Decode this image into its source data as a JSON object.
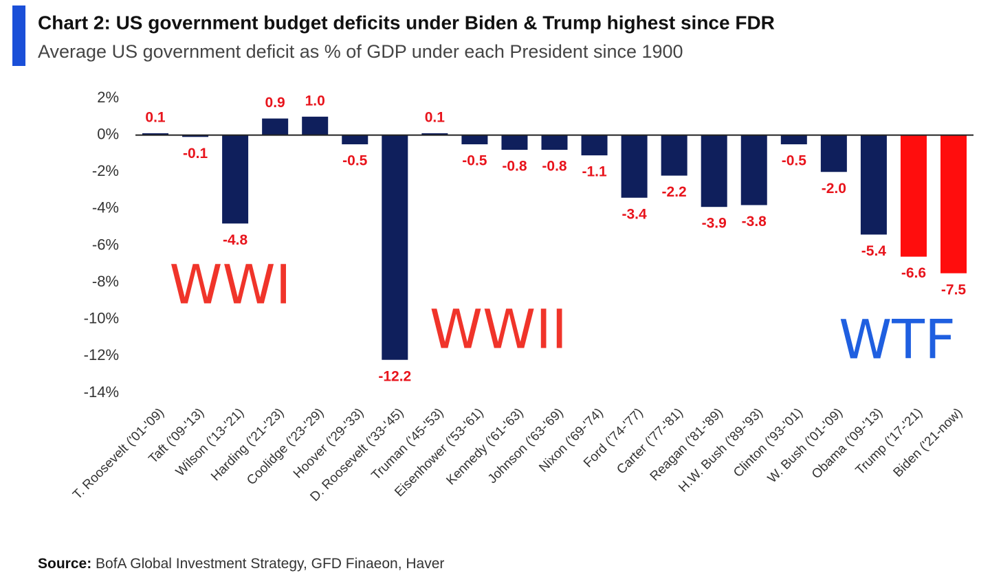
{
  "chart_data": {
    "type": "bar",
    "title": "Chart 2: US government budget deficits under Biden & Trump highest since FDR",
    "subtitle": "Average US government deficit as % of GDP under each President since 1900",
    "categories": [
      "T. Roosevelt ('01-'09)",
      "Taft ('09-'13)",
      "Wilson ('13-'21)",
      "Harding ('21-'23)",
      "Coolidge ('23-'29)",
      "Hoover ('29-'33)",
      "D. Roosevelt ('33-'45)",
      "Truman ('45-'53)",
      "Eisenhower ('53-'61)",
      "Kennedy ('61-'63)",
      "Johnson ('63-'69)",
      "Nixon ('69-'74)",
      "Ford ('74-'77)",
      "Carter ('77-'81)",
      "Reagan ('81-'89)",
      "H.W. Bush ('89-'93)",
      "Clinton ('93-'01)",
      "W. Bush ('01-'09)",
      "Obama ('09-'13)",
      "Trump ('17-'21)",
      "Biden ('21-now)"
    ],
    "values": [
      0.1,
      -0.1,
      -4.8,
      0.9,
      1.0,
      -0.5,
      -12.2,
      0.1,
      -0.5,
      -0.8,
      -0.8,
      -1.1,
      -3.4,
      -2.2,
      -3.9,
      -3.8,
      -0.5,
      -2.0,
      -5.4,
      -6.6,
      -7.5
    ],
    "value_labels": [
      "0.1",
      "-0.1",
      "-4.8",
      "0.9",
      "1.0",
      "-0.5",
      "-12.2",
      "0.1",
      "-0.5",
      "-0.8",
      "-0.8",
      "-1.1",
      "-3.4",
      "-2.2",
      "-3.9",
      "-3.8",
      "-0.5",
      "-2.0",
      "-5.4",
      "-6.6",
      "-7.5"
    ],
    "colors": [
      "#0f1f5c",
      "#0f1f5c",
      "#0f1f5c",
      "#0f1f5c",
      "#0f1f5c",
      "#0f1f5c",
      "#0f1f5c",
      "#0f1f5c",
      "#0f1f5c",
      "#0f1f5c",
      "#0f1f5c",
      "#0f1f5c",
      "#0f1f5c",
      "#0f1f5c",
      "#0f1f5c",
      "#0f1f5c",
      "#0f1f5c",
      "#0f1f5c",
      "#0f1f5c",
      "#ff0d0d",
      "#ff0d0d"
    ],
    "ylim": [
      -14,
      2
    ],
    "yticks": [
      {
        "value": 2,
        "label": "2%"
      },
      {
        "value": 0,
        "label": "0%"
      },
      {
        "value": -2,
        "label": "-2%"
      },
      {
        "value": -4,
        "label": "-4%"
      },
      {
        "value": -6,
        "label": "-6%"
      },
      {
        "value": -8,
        "label": "-8%"
      },
      {
        "value": -10,
        "label": "-10%"
      },
      {
        "value": -12,
        "label": "-12%"
      },
      {
        "value": -14,
        "label": "-14%"
      }
    ],
    "annotations": [
      {
        "text": "WWI",
        "color": "#f0342a"
      },
      {
        "text": "WWII",
        "color": "#f0342a"
      },
      {
        "text": "WTF",
        "color": "#1f5fe0"
      }
    ],
    "source_label": "Source:",
    "source": "BofA Global Investment Strategy, GFD Finaeon, Haver"
  }
}
